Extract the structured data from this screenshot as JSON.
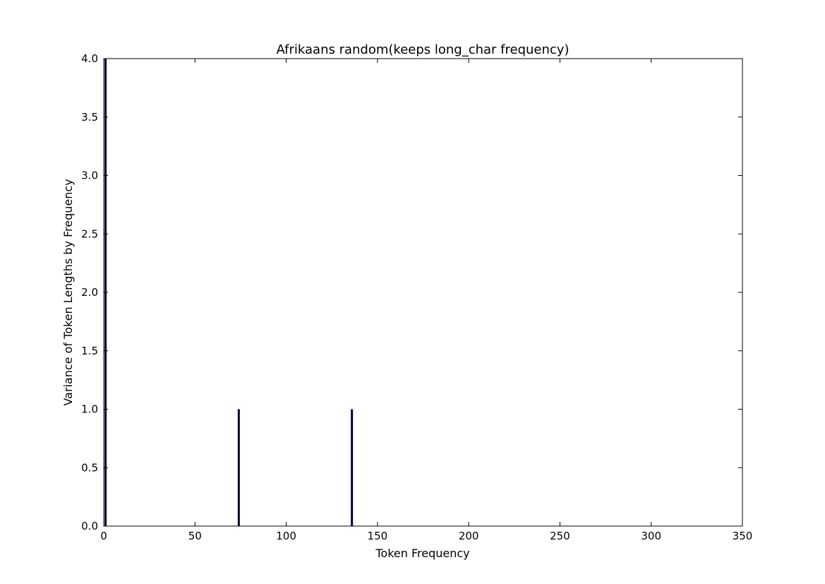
{
  "chart_data": {
    "type": "bar",
    "title": "Afrikaans random(keeps long_char frequency)",
    "xlabel": "Token Frequency",
    "ylabel": "Variance of Token Lengths by Frequency",
    "xlim": [
      0,
      350
    ],
    "ylim": [
      0,
      4.0
    ],
    "xticks": [
      0,
      50,
      100,
      150,
      200,
      250,
      300,
      350
    ],
    "yticks": [
      0.0,
      0.5,
      1.0,
      1.5,
      2.0,
      2.5,
      3.0,
      3.5,
      4.0
    ],
    "xtick_labels": [
      "0",
      "50",
      "100",
      "150",
      "200",
      "250",
      "300",
      "350"
    ],
    "ytick_labels": [
      "0.0",
      "0.5",
      "1.0",
      "1.5",
      "2.0",
      "2.5",
      "3.0",
      "3.5",
      "4.0"
    ],
    "grid": false,
    "bar_color": "#000033",
    "bars": [
      {
        "x": 1,
        "value": 4.0
      },
      {
        "x": 74,
        "value": 1.0
      },
      {
        "x": 136,
        "value": 1.0
      }
    ]
  }
}
